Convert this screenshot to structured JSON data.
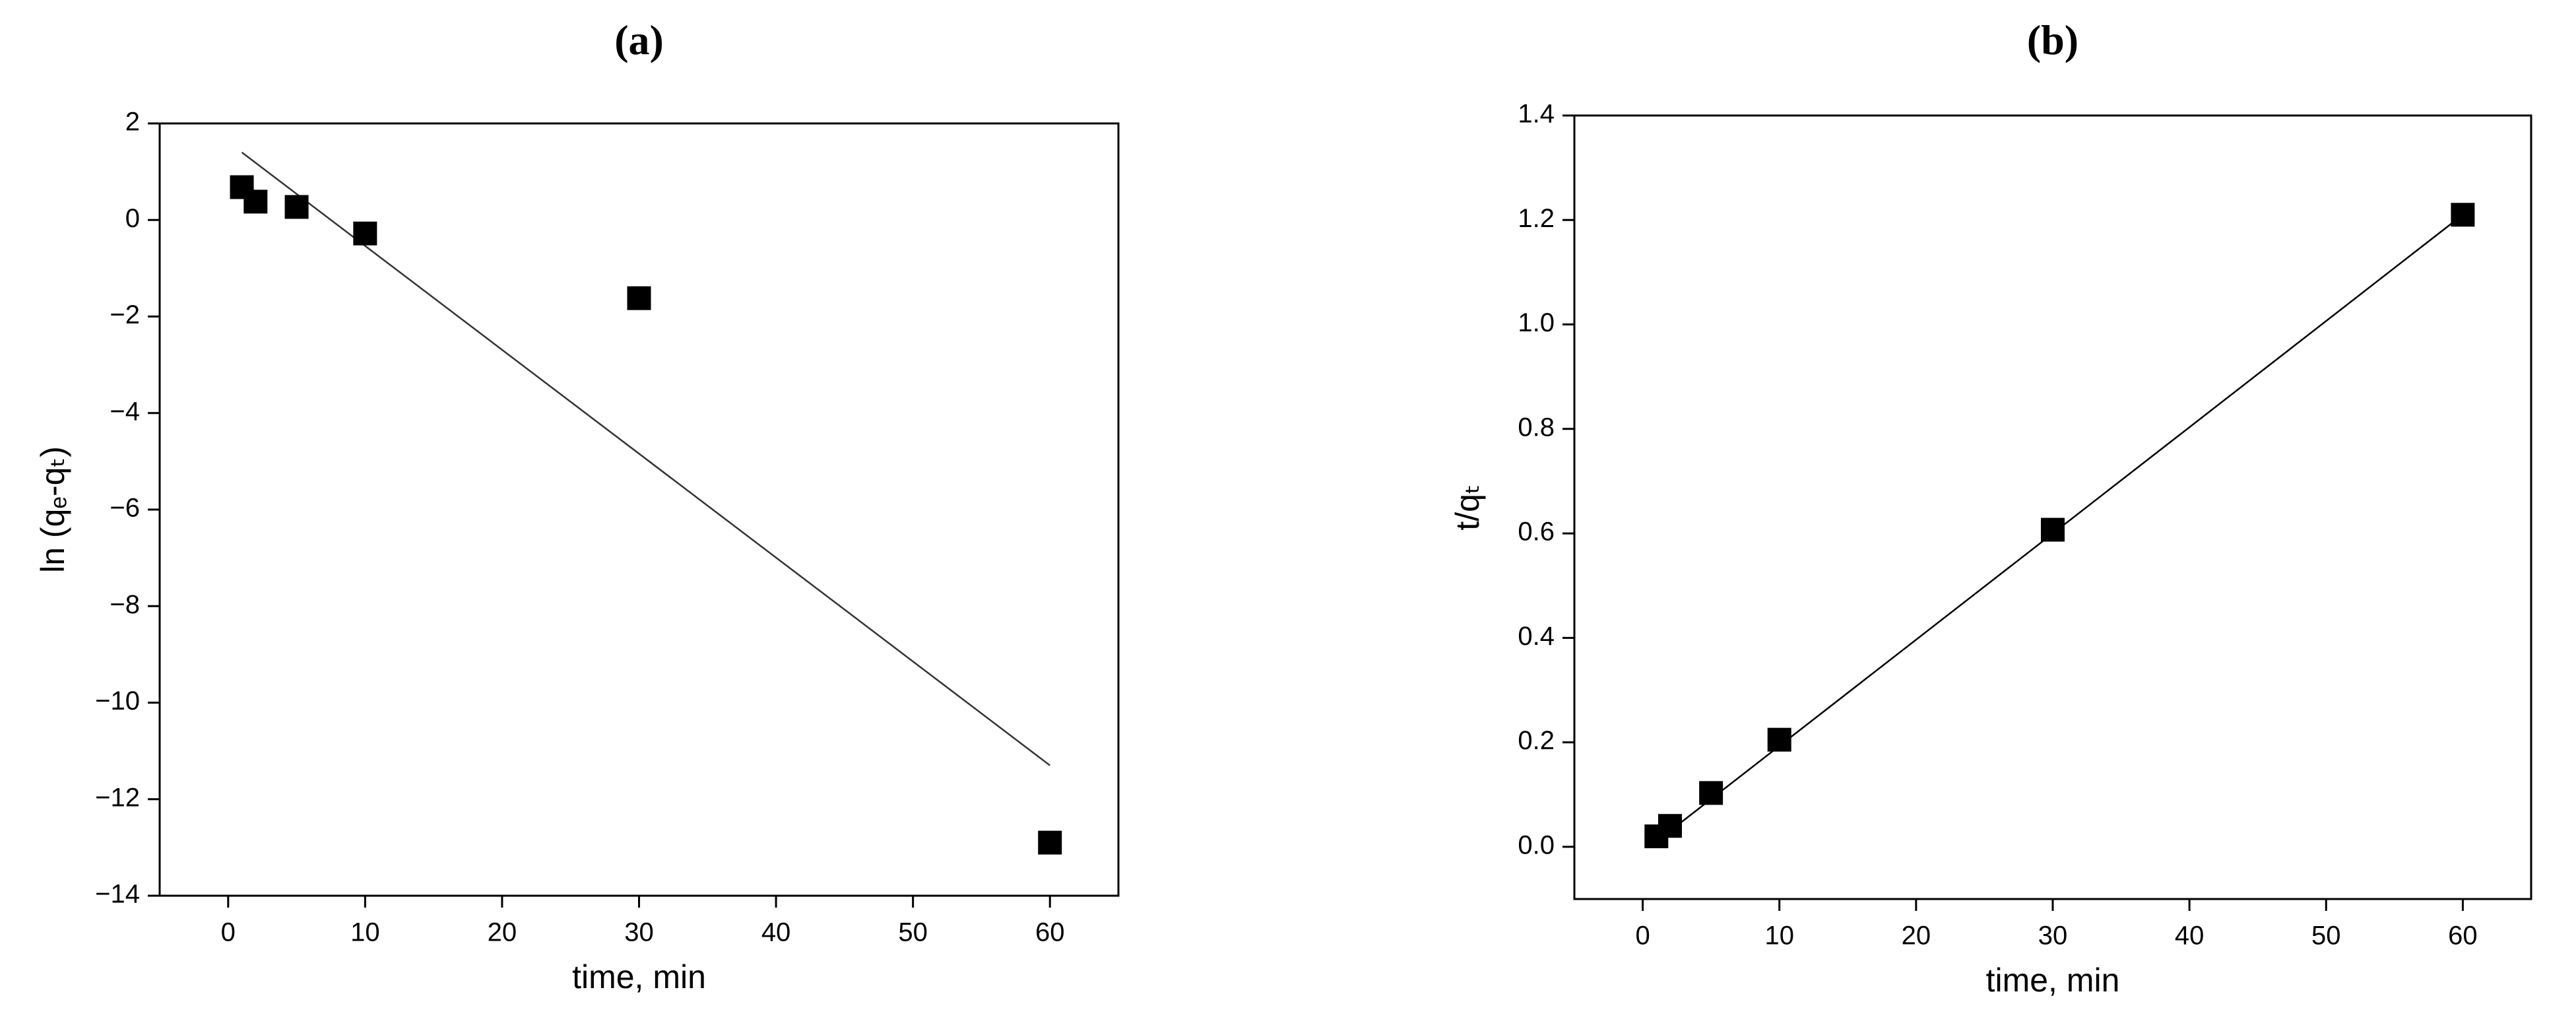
{
  "chart_data": [
    {
      "type": "scatter",
      "title": "(a)",
      "xlabel": "time, min",
      "ylabel": "ln (qₑ-qₜ)",
      "x": [
        1,
        2,
        5,
        10,
        30,
        60
      ],
      "values": [
        0.68,
        0.38,
        0.27,
        -0.28,
        -1.62,
        -12.9
      ],
      "color": "#000000",
      "fit": {
        "x": [
          1,
          60
        ],
        "values": [
          1.4,
          -11.3
        ],
        "color": "#333333"
      },
      "xlim": [
        -5,
        65
      ],
      "xticks": [
        0,
        10,
        20,
        30,
        40,
        50,
        60
      ],
      "ylim": [
        -14,
        2
      ],
      "yticks": [
        {
          "value": -14,
          "label": "−14"
        },
        {
          "value": -12,
          "label": "−12"
        },
        {
          "value": -10,
          "label": "−10"
        },
        {
          "value": -8,
          "label": "−8"
        },
        {
          "value": -6,
          "label": "−6"
        },
        {
          "value": -4,
          "label": "−4"
        },
        {
          "value": -2,
          "label": "−2"
        },
        0,
        2
      ]
    },
    {
      "type": "scatter",
      "title": "(b)",
      "xlabel": "time, min",
      "ylabel": "t/qₜ",
      "x": [
        1,
        2,
        5,
        10,
        30,
        60
      ],
      "values": [
        0.02,
        0.04,
        0.103,
        0.205,
        0.607,
        1.21
      ],
      "color": "#000000",
      "fit": {
        "x": [
          1,
          60
        ],
        "values": [
          0.01,
          1.21
        ],
        "color": "#000000"
      },
      "xlim": [
        -5,
        65
      ],
      "xticks": [
        0,
        10,
        20,
        30,
        40,
        50,
        60
      ],
      "ylim": [
        -0.1,
        1.4
      ],
      "yticks": [
        {
          "value": 0,
          "label": "0.0"
        },
        0.2,
        0.4,
        0.6,
        0.8,
        {
          "value": 1,
          "label": "1.0"
        },
        1.2,
        1.4
      ]
    }
  ]
}
